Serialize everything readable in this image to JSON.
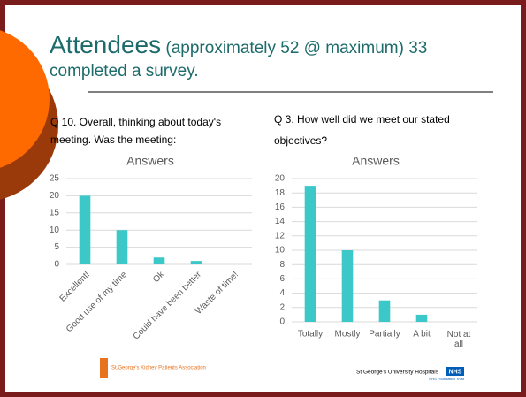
{
  "slide": {
    "title_main": "Attendees",
    "title_rest": "(approximately 52 @ maximum) 33 completed a survey.",
    "question_left": "Q 10. Overall, thinking about today's meeting. Was the meeting:",
    "question_right": "Q 3. How well did we meet our stated objectives?",
    "logo_left": "St.George's Kidney Patients Association",
    "logo_right": "St George's University Hospitals",
    "logo_right_badge": "NHS",
    "logo_right_sub": "NHS Foundation Trust"
  },
  "chart_data": [
    {
      "type": "bar",
      "title": "Answers",
      "categories": [
        "Excellent!",
        "Good use of my time",
        "Ok",
        "Could have been better",
        "Waste of time!"
      ],
      "values": [
        20,
        10,
        2,
        1,
        0
      ],
      "color": "#3cc8c8",
      "ylim": [
        0,
        25
      ],
      "yticks": [
        0,
        5,
        10,
        15,
        20,
        25
      ],
      "grid": true,
      "x_label_rotation": -45
    },
    {
      "type": "bar",
      "title": "Answers",
      "categories": [
        "Totally",
        "Mostly",
        "Partially",
        "A bit",
        "Not at all"
      ],
      "values": [
        19,
        10,
        3,
        1,
        0
      ],
      "color": "#3cc8c8",
      "ylim": [
        0,
        20
      ],
      "yticks": [
        0,
        2,
        4,
        6,
        8,
        10,
        12,
        14,
        16,
        18,
        20
      ],
      "grid": true,
      "x_label_rotation": 0
    }
  ]
}
